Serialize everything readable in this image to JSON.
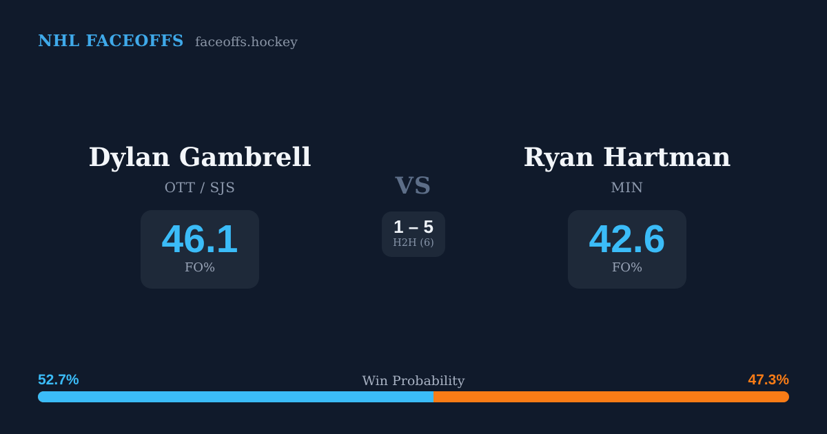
{
  "header": {
    "title": "NHL FACEOFFS",
    "site": "faceoffs.hockey"
  },
  "matchup": {
    "vs_label": "VS",
    "h2h": {
      "score": "1 – 5",
      "label": "H2H (6)"
    },
    "players": [
      {
        "name": "Dylan Gambrell",
        "team": "OTT / SJS",
        "fo_value": "46.1",
        "fo_label": "FO%",
        "win_probability": "52.7%"
      },
      {
        "name": "Ryan Hartman",
        "team": "MIN",
        "fo_value": "42.6",
        "fo_label": "FO%",
        "win_probability": "47.3%"
      }
    ]
  },
  "win_probability": {
    "label": "Win Probability",
    "left_label": "52.7%",
    "right_label": "47.3%",
    "left_value": 52.7,
    "right_value": 47.3
  },
  "colors": {
    "background": "#101a2b",
    "card": "#1e2939",
    "brand_blue": "#3fa9e9",
    "accent_blue": "#3bbcf8",
    "accent_orange": "#f97c16",
    "text_primary": "#f3f6fa",
    "text_muted": "#8e9aae"
  },
  "chart_data": {
    "type": "bar",
    "orientation": "horizontal_stacked",
    "title": "Win Probability",
    "categories": [
      "Win Probability"
    ],
    "series": [
      {
        "name": "Dylan Gambrell",
        "values": [
          52.7
        ],
        "color": "#3bbcf8"
      },
      {
        "name": "Ryan Hartman",
        "values": [
          47.3
        ],
        "color": "#f97c16"
      }
    ],
    "xlim": [
      0,
      100
    ],
    "value_labels": [
      "52.7%",
      "47.3%"
    ],
    "legend_position": "none",
    "grid": false
  }
}
